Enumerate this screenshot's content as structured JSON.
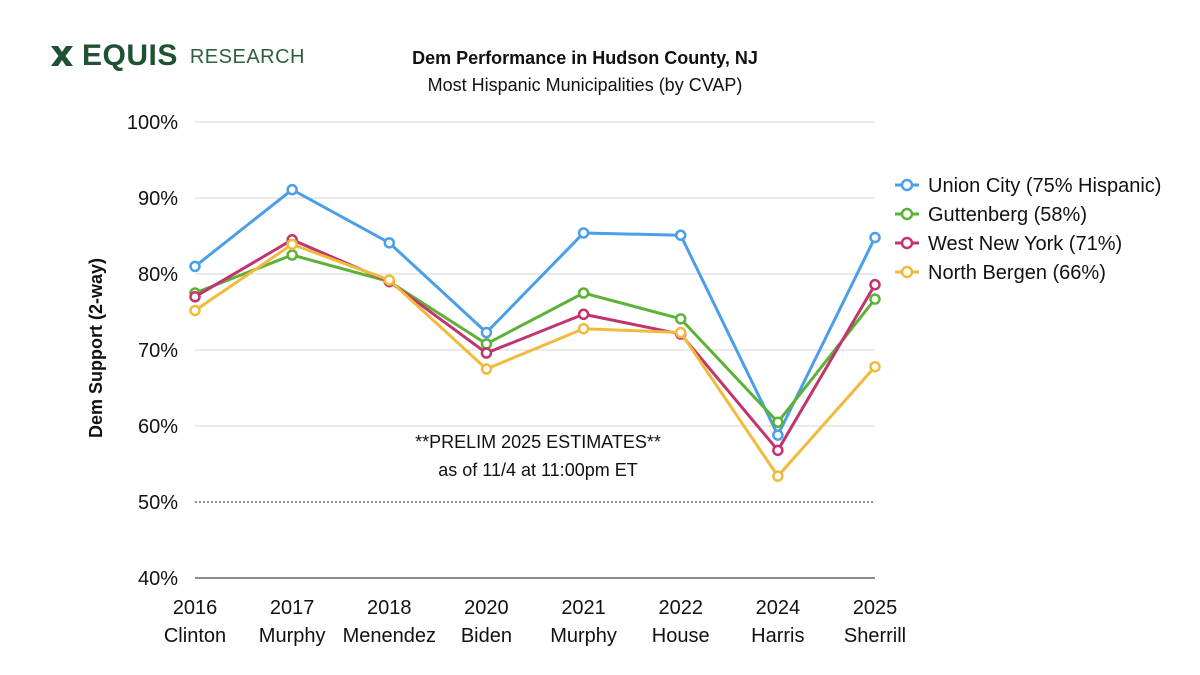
{
  "brand": {
    "name": "EQUIS",
    "sub": "RESEARCH",
    "icon": "equis-x-icon",
    "color": "#1f5232"
  },
  "chart_data": {
    "type": "line",
    "title": "Dem Performance in Hudson County, NJ",
    "subtitle": "Most Hispanic Municipalities (by CVAP)",
    "ylabel": "Dem Support (2-way)",
    "xlabel": "",
    "ylim": [
      40,
      100
    ],
    "yticks": [
      40,
      50,
      60,
      70,
      80,
      90,
      100
    ],
    "ytick_labels": [
      "40%",
      "50%",
      "60%",
      "70%",
      "80%",
      "90%",
      "100%"
    ],
    "reference_line": 50,
    "grid": true,
    "legend_position": "right",
    "categories": [
      {
        "year": "2016",
        "label": "Clinton"
      },
      {
        "year": "2017",
        "label": "Murphy"
      },
      {
        "year": "2018",
        "label": "Menendez"
      },
      {
        "year": "2020",
        "label": "Biden"
      },
      {
        "year": "2021",
        "label": "Murphy"
      },
      {
        "year": "2022",
        "label": "House"
      },
      {
        "year": "2024",
        "label": "Harris"
      },
      {
        "year": "2025",
        "label": "Sherrill"
      }
    ],
    "series": [
      {
        "name": "Union City (75% Hispanic)",
        "color": "#4a9fe8",
        "values": [
          81.0,
          91.1,
          84.1,
          72.3,
          85.4,
          85.1,
          58.8,
          84.8
        ]
      },
      {
        "name": "Guttenberg (58%)",
        "color": "#5cb237",
        "values": [
          77.5,
          82.5,
          79.0,
          70.8,
          77.5,
          74.1,
          60.5,
          76.7
        ]
      },
      {
        "name": "West New York (71%)",
        "color": "#c2336f",
        "values": [
          77.0,
          84.5,
          79.0,
          69.6,
          74.7,
          72.1,
          56.8,
          78.6
        ]
      },
      {
        "name": "North Bergen (66%)",
        "color": "#f0bb3c",
        "values": [
          75.2,
          83.9,
          79.2,
          67.5,
          72.8,
          72.3,
          53.4,
          67.8
        ]
      }
    ],
    "annotation": {
      "line1": "**PRELIM 2025 ESTIMATES**",
      "line2": "as of 11/4 at 11:00pm ET"
    }
  }
}
